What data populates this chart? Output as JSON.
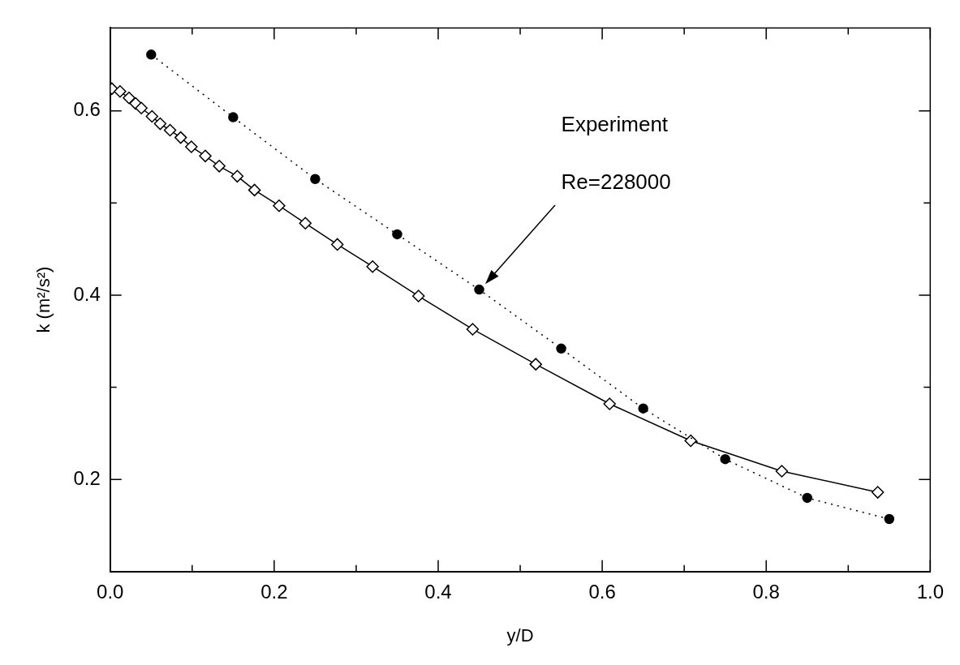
{
  "chart_data": {
    "type": "line",
    "xlabel": "y/D",
    "ylabel": "k (m²/s²)",
    "xlim": [
      0,
      1
    ],
    "ylim": [
      0.1,
      0.69
    ],
    "xticks": [
      {
        "value": 0,
        "label": "0.0"
      },
      {
        "value": 0.1,
        "label": null
      },
      0.2,
      {
        "value": 0.3,
        "label": null
      },
      0.4,
      {
        "value": 0.5,
        "label": null
      },
      0.6,
      {
        "value": 0.7,
        "label": null
      },
      0.8,
      {
        "value": 0.9,
        "label": null
      },
      {
        "value": 1,
        "label": "1.0"
      }
    ],
    "yticks": [
      0.2,
      {
        "value": 0.3,
        "label": null
      },
      0.4,
      {
        "value": 0.5,
        "label": null
      },
      0.6
    ],
    "grid": false,
    "legend": false,
    "series": [
      {
        "color": "#000000",
        "marker": "circle",
        "line_style": "dotted",
        "x": [
          0.05,
          0.15,
          0.25,
          0.35,
          0.45,
          0.55,
          0.65,
          0.75,
          0.85,
          0.95
        ],
        "values": [
          0.661,
          0.593,
          0.526,
          0.466,
          0.406,
          0.342,
          0.277,
          0.222,
          0.18,
          0.157
        ]
      },
      {
        "color": "#000000",
        "marker": "diamond",
        "line_style": "solid",
        "x": [
          0.002,
          0.012,
          0.023,
          0.031,
          0.038,
          0.051,
          0.061,
          0.073,
          0.086,
          0.099,
          0.116,
          0.133,
          0.155,
          0.176,
          0.206,
          0.238,
          0.277,
          0.32,
          0.376,
          0.442,
          0.519,
          0.609,
          0.708,
          0.819,
          0.936
        ],
        "values": [
          0.624,
          0.621,
          0.614,
          0.608,
          0.603,
          0.594,
          0.586,
          0.579,
          0.571,
          0.561,
          0.551,
          0.54,
          0.529,
          0.514,
          0.497,
          0.478,
          0.455,
          0.431,
          0.399,
          0.363,
          0.325,
          0.282,
          0.242,
          0.209,
          0.186
        ]
      }
    ],
    "annotations": [
      "Experiment",
      "Re=228000"
    ]
  }
}
